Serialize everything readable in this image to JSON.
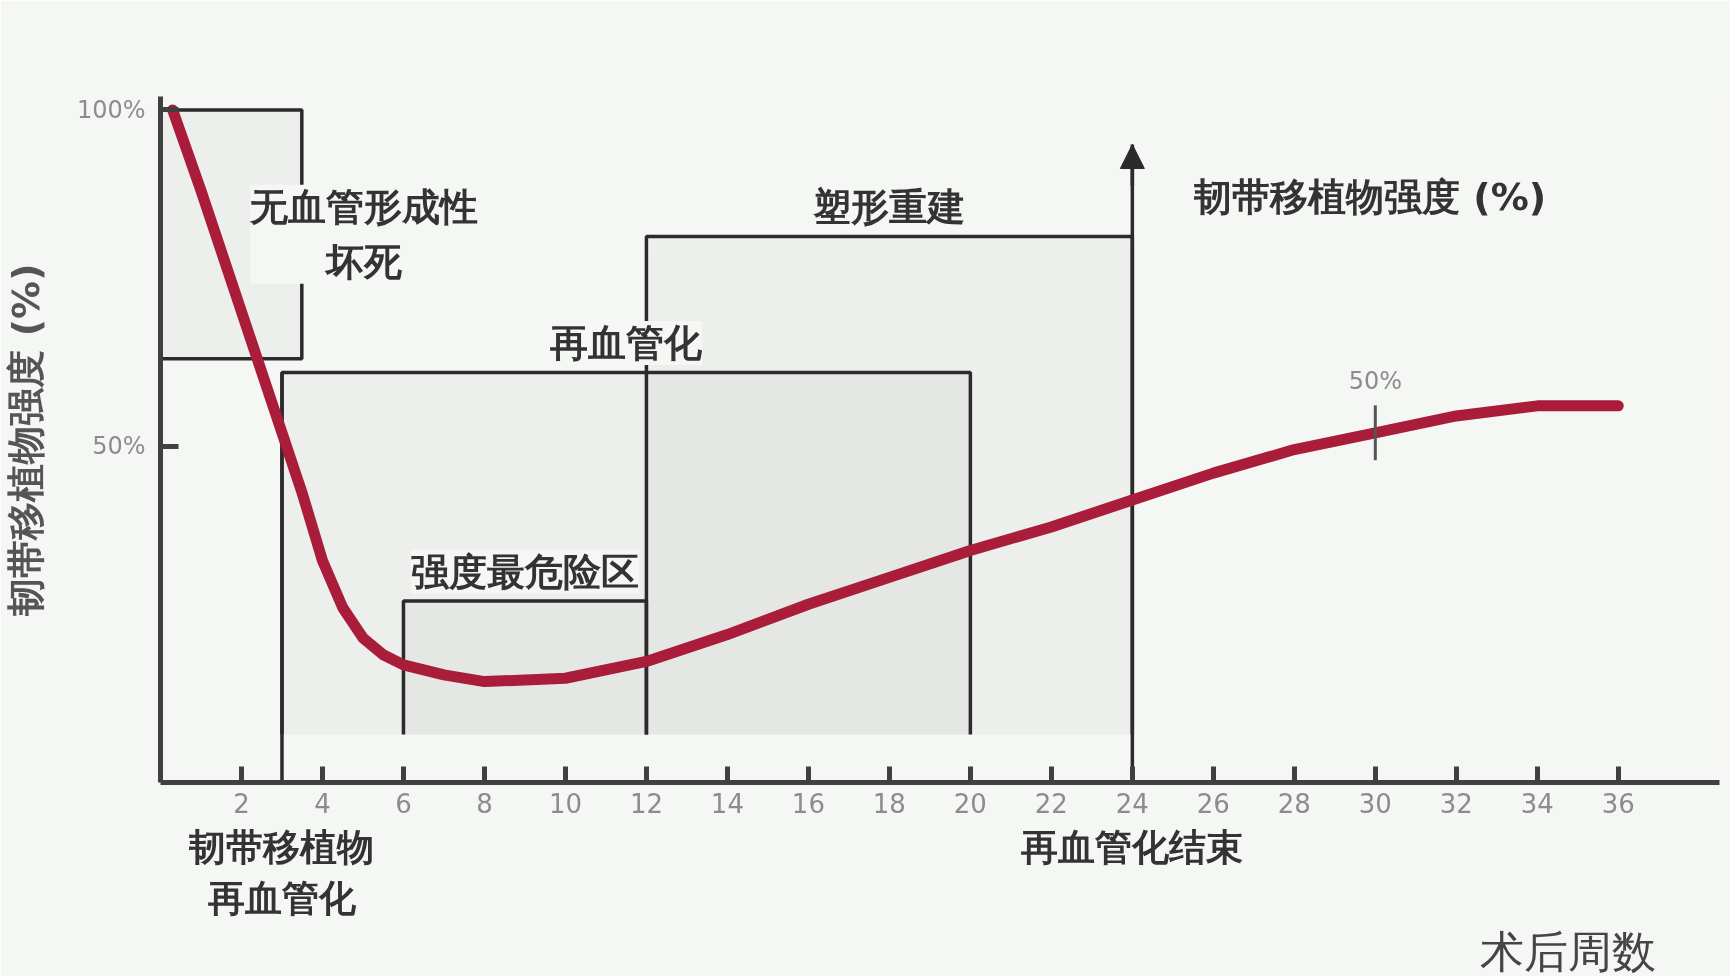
{
  "chart_data": {
    "type": "line",
    "xlabel": "术后周数",
    "ylabel": "韧带移植物强度 (%)",
    "x": [
      0.3,
      1,
      2,
      3,
      3.5,
      4,
      4.5,
      5,
      5.5,
      6,
      7,
      8,
      10,
      12,
      14,
      16,
      18,
      20,
      22,
      24,
      26,
      28,
      30,
      32,
      34,
      36
    ],
    "series": [
      {
        "color": "#a91d3a",
        "values": [
          100,
          88,
          70,
          52,
          43,
          33,
          26,
          21.5,
          19,
          17.5,
          16,
          15,
          15.5,
          18,
          22,
          26.5,
          30.5,
          34.5,
          38,
          42,
          46,
          49.5,
          52,
          54.5,
          56,
          56
        ]
      }
    ],
    "xlim": [
      0,
      38.5
    ],
    "ylim": [
      0,
      102
    ],
    "xticks": [
      2,
      4,
      6,
      8,
      10,
      12,
      14,
      16,
      18,
      20,
      22,
      24,
      26,
      28,
      30,
      32,
      34,
      36
    ],
    "yticks": [
      {
        "value": 50,
        "label": "50%"
      },
      {
        "value": 100,
        "label": "100%"
      }
    ],
    "grid": false,
    "bands": [
      {
        "axis": "y",
        "from": 63,
        "to": 100,
        "label": "无血管形成性坏死"
      },
      {
        "axis": "x",
        "from": 6,
        "to": 12,
        "label": "强度最危险区"
      },
      {
        "axis": "x",
        "from": 3,
        "to": 20,
        "label": "再血管化"
      },
      {
        "axis": "x",
        "from": 12,
        "to": 24,
        "label": "塑形重建"
      }
    ],
    "ref_lines": [
      {
        "axis": "x",
        "value": 3,
        "label": "韧带移植物再血管化"
      },
      {
        "axis": "x",
        "value": 24,
        "label": "再血管化结束"
      }
    ],
    "annotations": [
      "韧带移植物强度 (%)",
      {
        "text": "50%",
        "x": 30,
        "y": 52
      }
    ]
  }
}
